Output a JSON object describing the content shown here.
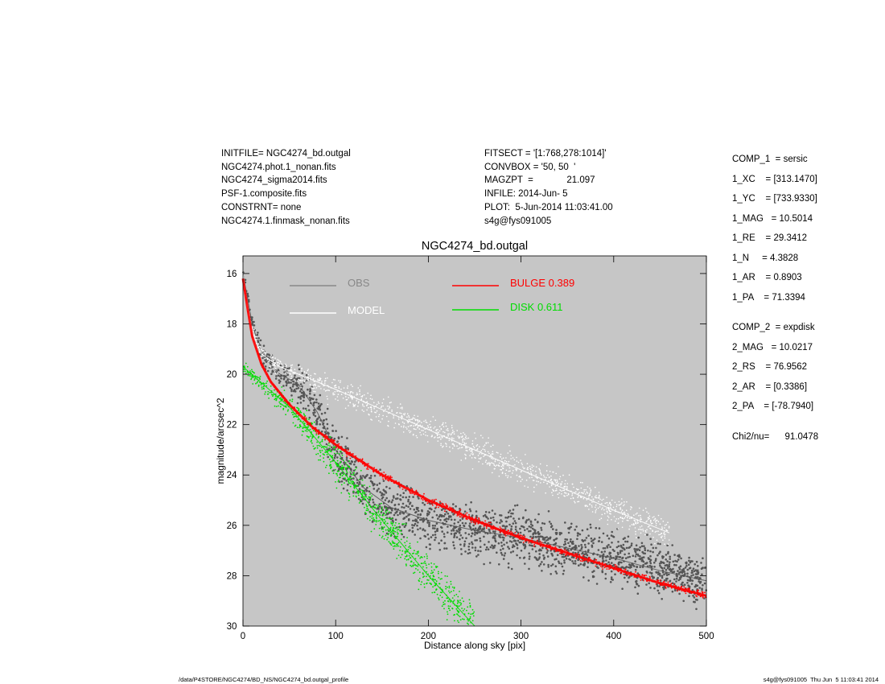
{
  "header_left": [
    "INITFILE= NGC4274_bd.outgal",
    "NGC4274.phot.1_nonan.fits",
    "NGC4274_sigma2014.fits",
    "PSF-1.composite.fits",
    "CONSTRNT= none",
    "NGC4274.1.finmask_nonan.fits"
  ],
  "header_mid": [
    "FITSECT = '[1:768,278:1014]'",
    "CONVBOX = '50, 50  '",
    "MAGZPT  =             21.097",
    "INFILE: 2014-Jun- 5",
    "PLOT:  5-Jun-2014 11:03:41.00",
    "s4g@fys091005"
  ],
  "params": [
    "COMP_1  = sersic",
    "1_XC    = [313.1470]",
    "1_YC    = [733.9330]",
    "1_MAG   = 10.5014",
    "1_RE    = 29.3412",
    "1_N     = 4.3828",
    "1_AR    = 0.8903",
    "1_PA    = 71.3394",
    "COMP_2  = expdisk",
    "2_MAG   = 10.0217",
    "2_RS    = 76.9562",
    "2_AR    = [0.3386]",
    "2_PA    = [-78.7940]",
    "Chi2/nu=      91.0478"
  ],
  "footer_left": "/data/P4STORE/NGC4274/BD_NS/NGC4274_bd.outgal_profile",
  "footer_right": "s4g@fys091005  Thu Jun  5 11:03:41 2014",
  "colors": {
    "plot_bg": "#c6c6c6",
    "obs": "#555555",
    "model": "#ffffff",
    "bulge": "#ff0000",
    "disk": "#00dd00"
  },
  "chart_data": {
    "type": "scatter",
    "title": "NGC4274_bd.outgal",
    "xlabel": "Distance along sky [pix]",
    "ylabel": "magnitude/arcsec^2",
    "xlim": [
      0,
      500
    ],
    "ylim": [
      30,
      15.3
    ],
    "y_inverted": true,
    "xticks": [
      0,
      100,
      200,
      300,
      400,
      500
    ],
    "yticks": [
      16,
      18,
      20,
      22,
      24,
      26,
      28,
      30
    ],
    "legend": [
      {
        "name": "OBS",
        "color": "#888888"
      },
      {
        "name": "MODEL",
        "color": "#ffffff"
      },
      {
        "name": "BULGE  0.389",
        "color": "#ff0000"
      },
      {
        "name": "DISK  0.611",
        "color": "#00dd00"
      }
    ],
    "series": [
      {
        "name": "OBS",
        "x": [
          0,
          5,
          10,
          20,
          40,
          60,
          80,
          100,
          130,
          160,
          200,
          250,
          300,
          350,
          400,
          450,
          500
        ],
        "y": [
          16.0,
          17.0,
          18.0,
          19.2,
          20.0,
          20.4,
          21.5,
          23.0,
          24.5,
          25.3,
          25.8,
          26.2,
          26.5,
          26.9,
          27.3,
          27.8,
          28.2
        ]
      },
      {
        "name": "MODEL",
        "x": [
          0,
          5,
          10,
          20,
          40,
          60,
          80,
          100,
          150,
          200,
          250,
          300,
          350,
          400,
          460
        ],
        "y": [
          16.0,
          17.3,
          18.3,
          19.2,
          19.7,
          20.0,
          20.3,
          20.6,
          21.4,
          22.2,
          23.0,
          23.8,
          24.6,
          25.4,
          26.3
        ]
      },
      {
        "name": "BULGE  0.389",
        "x": [
          0,
          5,
          10,
          20,
          30,
          50,
          75,
          100,
          150,
          200,
          250,
          300,
          350,
          400,
          450,
          500
        ],
        "y": [
          16.2,
          17.4,
          18.5,
          19.6,
          20.3,
          21.2,
          22.1,
          22.8,
          24.0,
          25.0,
          25.8,
          26.5,
          27.1,
          27.7,
          28.3,
          28.8
        ]
      },
      {
        "name": "DISK  0.611",
        "x": [
          0,
          50,
          100,
          150,
          200,
          250
        ],
        "y": [
          19.7,
          21.3,
          23.5,
          25.8,
          28.0,
          30.0
        ]
      }
    ]
  }
}
